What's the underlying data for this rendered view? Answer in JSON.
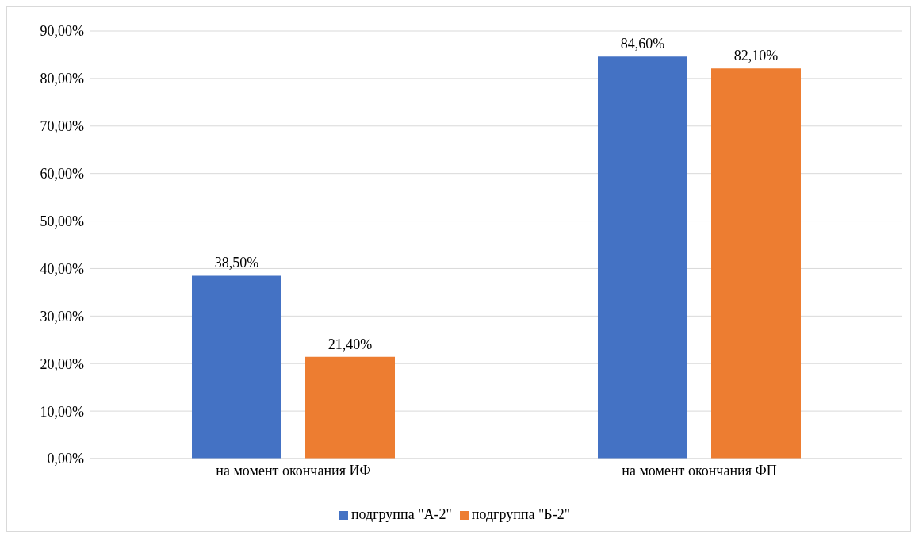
{
  "chart_data": {
    "type": "bar",
    "categories": [
      "на момент окончания ИФ",
      "на момент окончания ФП"
    ],
    "series": [
      {
        "name": "подгруппа \"А-2\"",
        "color": "#4472c4",
        "values": [
          38.5,
          84.6
        ],
        "value_labels": [
          "38,50%",
          "84,60%"
        ]
      },
      {
        "name": "подгруппа \"Б-2\"",
        "color": "#ed7d31",
        "values": [
          21.4,
          82.1
        ],
        "value_labels": [
          "21,40%",
          "82,10%"
        ]
      }
    ],
    "ylim": [
      0,
      90
    ],
    "yticks": [
      {
        "value": 0,
        "label": "0,00%"
      },
      {
        "value": 10,
        "label": "10,00%"
      },
      {
        "value": 20,
        "label": "20,00%"
      },
      {
        "value": 30,
        "label": "30,00%"
      },
      {
        "value": 40,
        "label": "40,00%"
      },
      {
        "value": 50,
        "label": "50,00%"
      },
      {
        "value": 60,
        "label": "60,00%"
      },
      {
        "value": 70,
        "label": "70,00%"
      },
      {
        "value": 80,
        "label": "80,00%"
      },
      {
        "value": 90,
        "label": "90,00%"
      }
    ],
    "grid": "y",
    "legend": "bottom"
  }
}
